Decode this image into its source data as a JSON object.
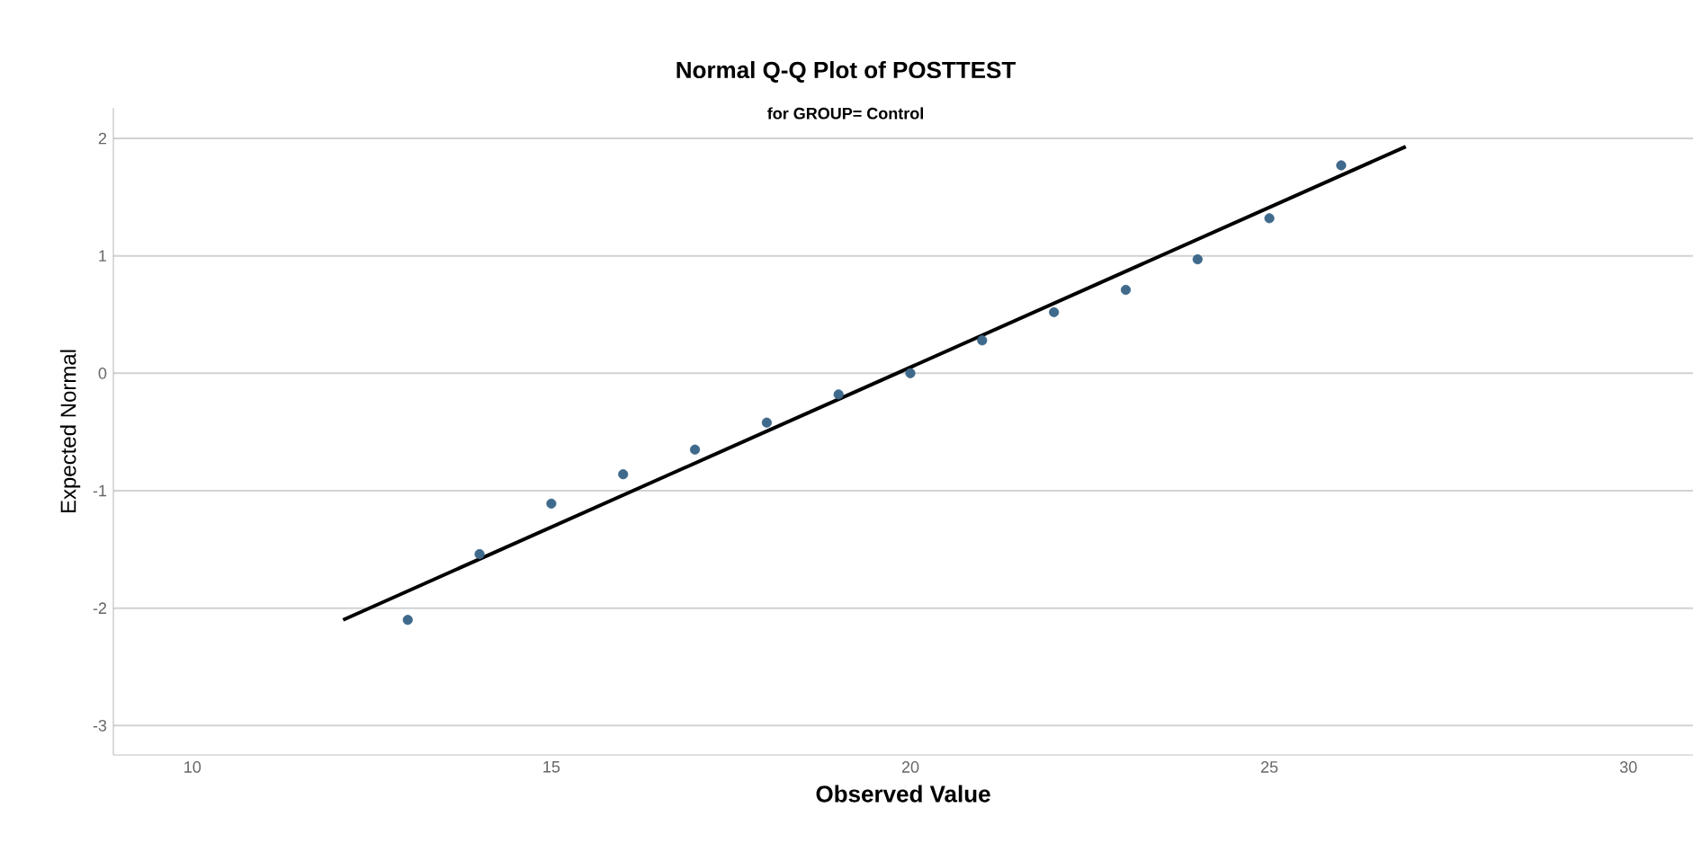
{
  "chart_data": {
    "type": "scatter",
    "title": "Normal Q-Q Plot of POSTTEST",
    "subtitle": "for GROUP= Control",
    "xlabel": "Observed Value",
    "ylabel": "Expected Normal",
    "xlim": [
      8.9,
      30.9
    ],
    "ylim": [
      -3.25,
      2.26
    ],
    "xticks": [
      10,
      15,
      20,
      25,
      30
    ],
    "yticks": [
      -3,
      -2,
      -1,
      0,
      1,
      2
    ],
    "grid": "y",
    "series": [
      {
        "marker": "circle",
        "color": "#3f6a8c",
        "x": [
          13,
          14,
          15,
          16,
          17,
          18,
          19,
          20,
          21,
          22,
          23,
          24,
          25,
          26
        ],
        "values": [
          -2.1,
          -1.54,
          -1.11,
          -0.86,
          -0.65,
          -0.42,
          -0.18,
          0.0,
          0.28,
          0.52,
          0.71,
          0.97,
          1.32,
          1.77
        ]
      },
      {
        "type": "line",
        "marker": "none",
        "color": "#000000",
        "x": [
          12.1,
          26.9
        ],
        "values": [
          -2.1,
          1.93
        ]
      }
    ]
  }
}
